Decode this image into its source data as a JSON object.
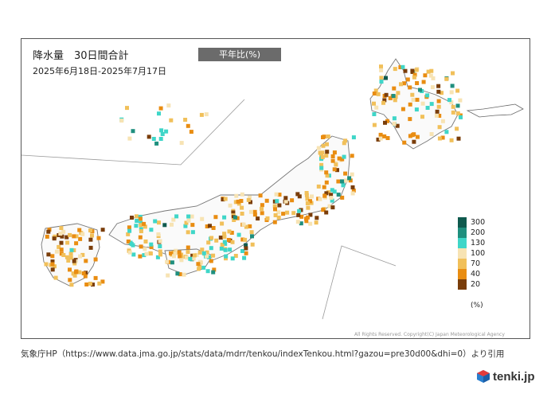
{
  "map": {
    "title": "降水量　30日間合計",
    "period": "2025年6月18日-2025年7月17日",
    "mode": "平年比(%)",
    "copyright": "All Rights Reserved. Copyright(C) Japan Meteorological Agency"
  },
  "legend": {
    "items": [
      {
        "label": "300",
        "color": "#0f5a4e"
      },
      {
        "label": "200",
        "color": "#1f8f7e"
      },
      {
        "label": "130",
        "color": "#3fd6c8"
      },
      {
        "label": "100",
        "color": "#f7e3b3"
      },
      {
        "label": "70",
        "color": "#f1c05a"
      },
      {
        "label": "40",
        "color": "#e98d12"
      },
      {
        "label": "20",
        "color": "#7a3d0a"
      }
    ],
    "unit": "(%)"
  },
  "source": "気象庁HP（https://www.data.jma.go.jp/stats/data/mdrr/tenkou/indexTenkou.html?gazou=pre30d00&dhi=0）より引用",
  "brand": {
    "name": "tenki.jp",
    "icon": "tenki-logo-icon"
  }
}
